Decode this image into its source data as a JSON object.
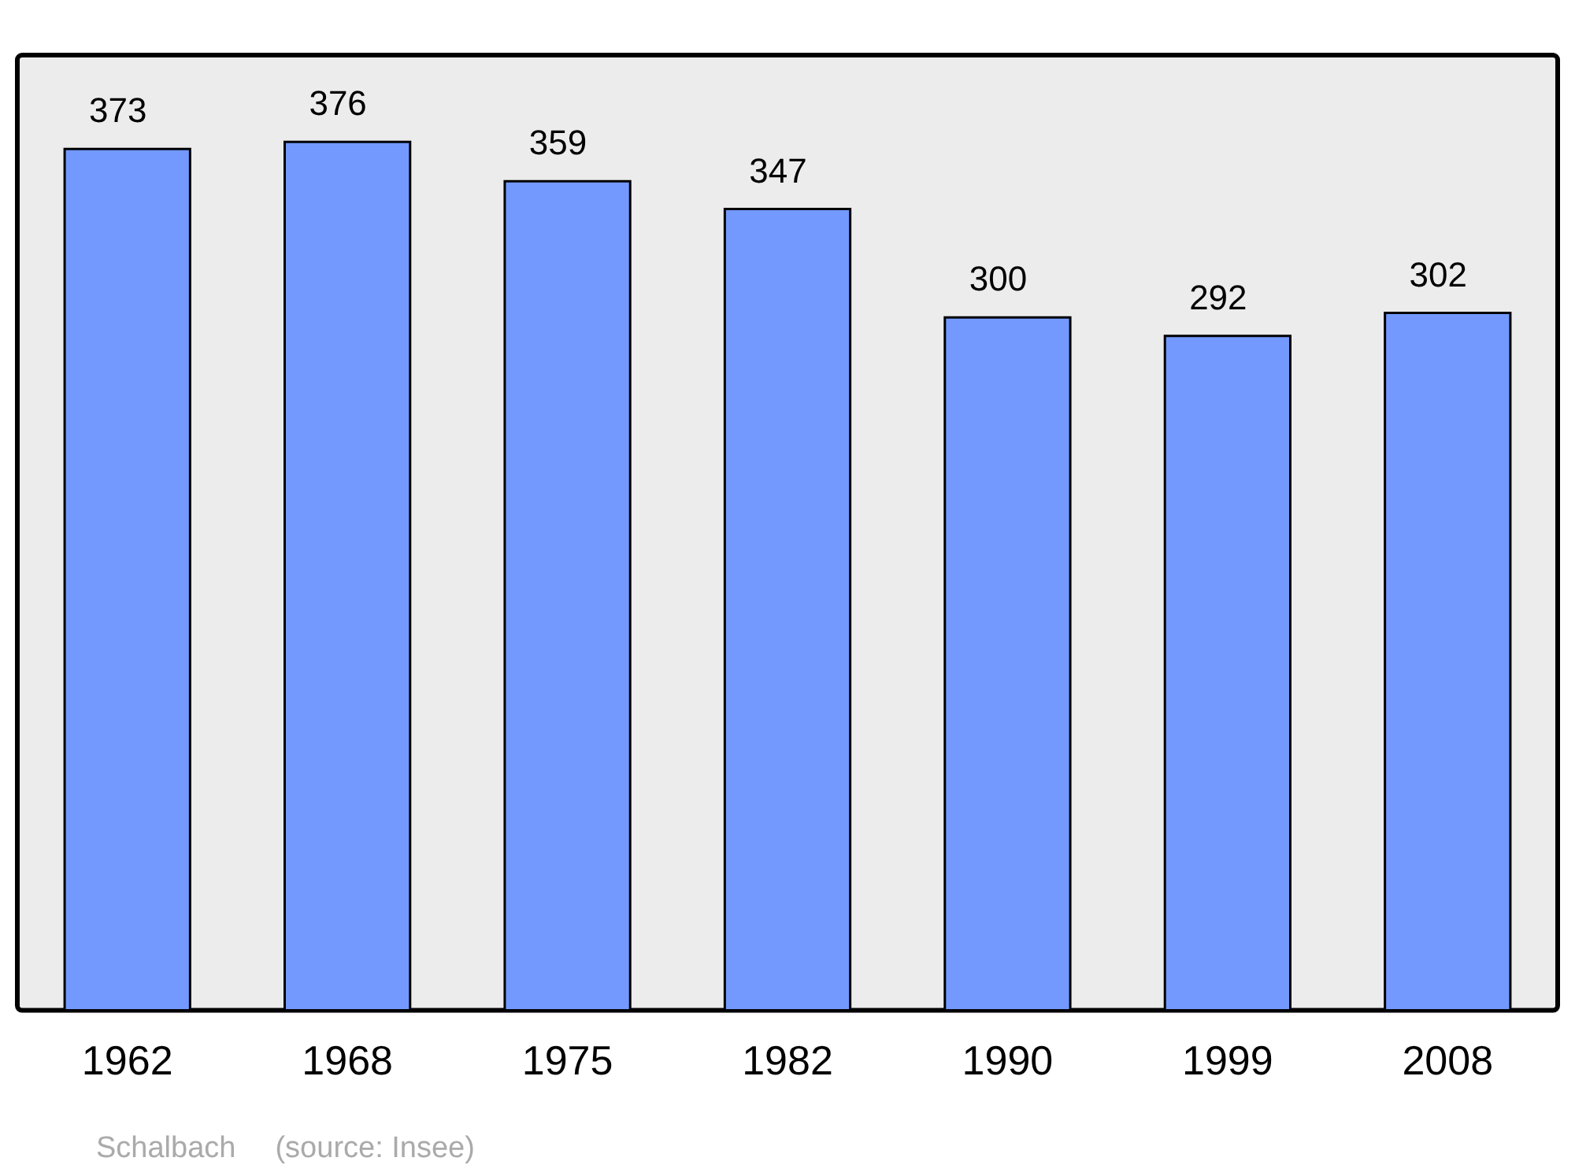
{
  "chart_data": {
    "type": "bar",
    "categories": [
      "1962",
      "1968",
      "1975",
      "1982",
      "1990",
      "1999",
      "2008"
    ],
    "values": [
      373,
      376,
      359,
      347,
      300,
      292,
      302
    ],
    "color": "#7399ff",
    "data_labels": true,
    "annotations": [
      "Schalbach",
      "(source: Insee)"
    ]
  }
}
